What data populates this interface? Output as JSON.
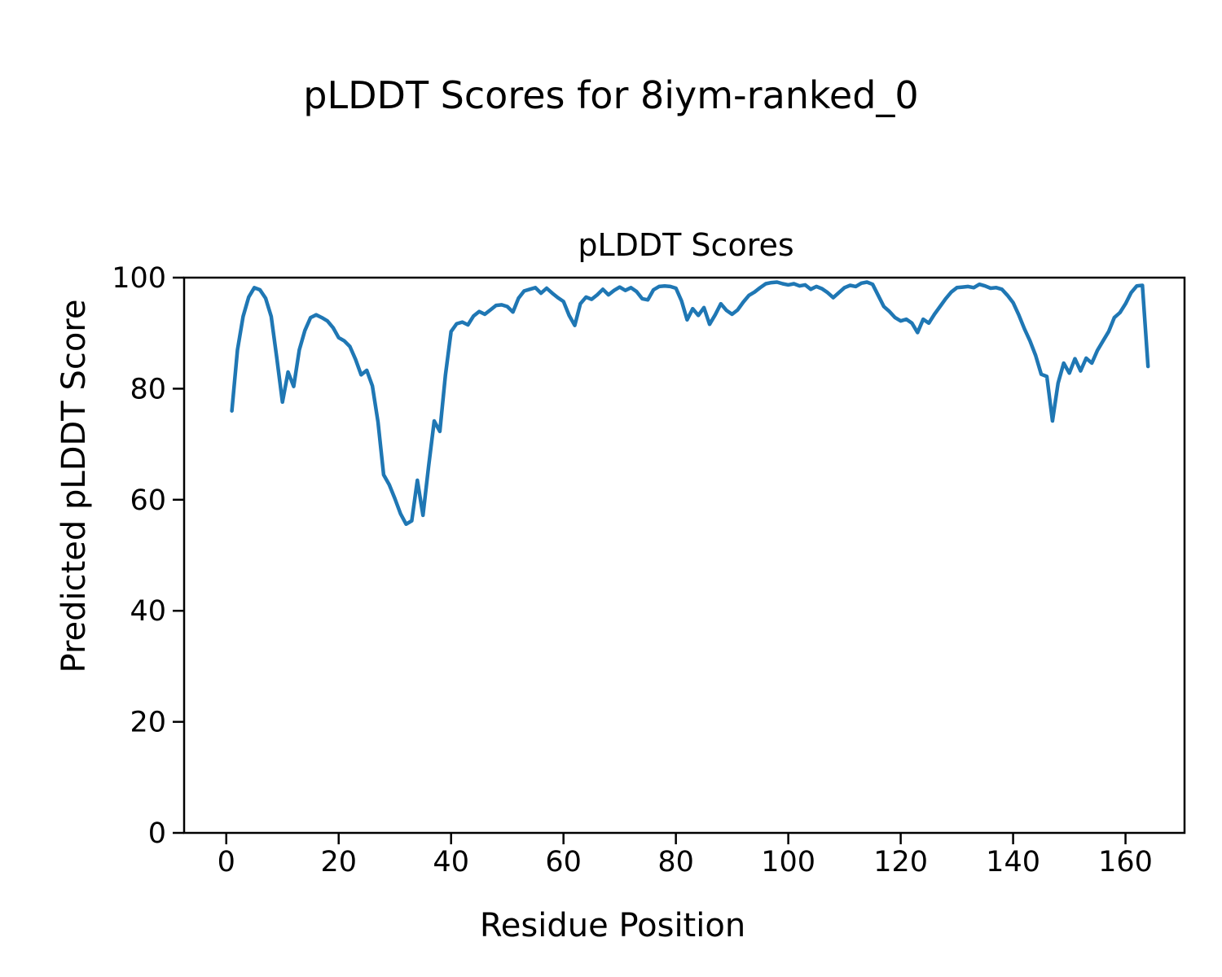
{
  "chart_data": {
    "type": "line",
    "suptitle": "pLDDT Scores for 8iym-ranked_0",
    "title": "pLDDT Scores",
    "xlabel": "Residue Position",
    "ylabel": "Predicted pLDDT Score",
    "xlim": [
      -7.5,
      170.5
    ],
    "ylim": [
      0,
      100
    ],
    "xticks": [
      0,
      20,
      40,
      60,
      80,
      100,
      120,
      140,
      160
    ],
    "yticks": [
      0,
      20,
      40,
      60,
      80,
      100
    ],
    "grid": false,
    "legend": "none",
    "line_color": "#1f77b4",
    "background_color": "#ffffff",
    "text_color": "#000000",
    "series": [
      {
        "name": "pLDDT",
        "x": [
          1,
          2,
          3,
          4,
          5,
          6,
          7,
          8,
          9,
          10,
          11,
          12,
          13,
          14,
          15,
          16,
          17,
          18,
          19,
          20,
          21,
          22,
          23,
          24,
          25,
          26,
          27,
          28,
          29,
          30,
          31,
          32,
          33,
          34,
          35,
          36,
          37,
          38,
          39,
          40,
          41,
          42,
          43,
          44,
          45,
          46,
          47,
          48,
          49,
          50,
          51,
          52,
          53,
          54,
          55,
          56,
          57,
          58,
          59,
          60,
          61,
          62,
          63,
          64,
          65,
          66,
          67,
          68,
          69,
          70,
          71,
          72,
          73,
          74,
          75,
          76,
          77,
          78,
          79,
          80,
          81,
          82,
          83,
          84,
          85,
          86,
          87,
          88,
          89,
          90,
          91,
          92,
          93,
          94,
          95,
          96,
          97,
          98,
          99,
          100,
          101,
          102,
          103,
          104,
          105,
          106,
          107,
          108,
          109,
          110,
          111,
          112,
          113,
          114,
          115,
          116,
          117,
          118,
          119,
          120,
          121,
          122,
          123,
          124,
          125,
          126,
          127,
          128,
          129,
          130,
          131,
          132,
          133,
          134,
          135,
          136,
          137,
          138,
          139,
          140,
          141,
          142,
          143,
          144,
          145,
          146,
          147,
          148,
          149,
          150,
          151,
          152,
          153,
          154,
          155,
          156,
          157,
          158,
          159,
          160,
          161,
          162,
          163,
          164
        ],
        "values": [
          76,
          87,
          93,
          96.5,
          98.2,
          97.8,
          96.3,
          93,
          85.5,
          77.6,
          83,
          80.4,
          87,
          90.5,
          92.8,
          93.3,
          92.8,
          92.2,
          91,
          89.2,
          88.6,
          87.6,
          85.3,
          82.5,
          83.3,
          80.5,
          74,
          64.5,
          62.7,
          60.2,
          57.5,
          55.6,
          56.2,
          63.5,
          57.2,
          66,
          74.2,
          72.3,
          82.5,
          90.3,
          91.7,
          92,
          91.5,
          93.1,
          93.9,
          93.4,
          94.2,
          95,
          95.1,
          94.8,
          93.8,
          96.3,
          97.6,
          97.9,
          98.2,
          97.2,
          98.1,
          97.2,
          96.4,
          95.7,
          93.2,
          91.4,
          95.3,
          96.5,
          96.1,
          96.9,
          97.9,
          96.9,
          97.7,
          98.3,
          97.7,
          98.2,
          97.5,
          96.2,
          96,
          97.8,
          98.4,
          98.5,
          98.4,
          98.1,
          95.8,
          92.4,
          94.4,
          93.2,
          94.6,
          91.6,
          93.3,
          95.3,
          94.1,
          93.4,
          94.2,
          95.6,
          96.8,
          97.4,
          98.2,
          98.9,
          99.1,
          99.2,
          98.9,
          98.7,
          98.9,
          98.5,
          98.7,
          97.9,
          98.4,
          98,
          97.3,
          96.4,
          97.3,
          98.2,
          98.6,
          98.4,
          99,
          99.2,
          98.8,
          96.8,
          94.8,
          93.9,
          92.8,
          92.2,
          92.5,
          91.8,
          90.1,
          92.5,
          91.8,
          93.4,
          94.8,
          96.2,
          97.4,
          98.2,
          98.3,
          98.4,
          98.2,
          98.8,
          98.5,
          98.1,
          98.2,
          97.9,
          96.8,
          95.5,
          93.3,
          90.8,
          88.6,
          86,
          82.6,
          82.2,
          74.2,
          81,
          84.6,
          82.8,
          85.4,
          83.2,
          85.5,
          84.6,
          86.9,
          88.6,
          90.3,
          92.8,
          93.7,
          95.3,
          97.3,
          98.5,
          98.6,
          84
        ]
      }
    ]
  }
}
